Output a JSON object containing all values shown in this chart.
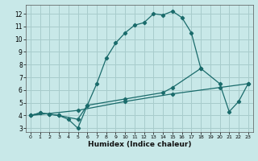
{
  "xlabel": "Humidex (Indice chaleur)",
  "bg_color": "#c8e8e8",
  "grid_color": "#a8cccc",
  "line_color": "#1a6b6b",
  "xlim": [
    -0.5,
    23.5
  ],
  "ylim": [
    2.7,
    12.7
  ],
  "xticks": [
    0,
    1,
    2,
    3,
    4,
    5,
    6,
    7,
    8,
    9,
    10,
    11,
    12,
    13,
    14,
    15,
    16,
    17,
    18,
    19,
    20,
    21,
    22,
    23
  ],
  "yticks": [
    3,
    4,
    5,
    6,
    7,
    8,
    9,
    10,
    11,
    12
  ],
  "curve1_x": [
    0,
    1,
    2,
    3,
    4,
    5,
    6,
    7,
    8,
    9,
    10,
    11,
    12,
    13,
    14,
    15,
    16,
    17,
    18
  ],
  "curve1_y": [
    4.0,
    4.2,
    4.1,
    4.0,
    3.7,
    3.0,
    4.8,
    6.5,
    8.5,
    9.7,
    10.5,
    11.1,
    11.3,
    12.0,
    11.9,
    12.2,
    11.7,
    10.5,
    7.7
  ],
  "curve2_x": [
    0,
    1,
    2,
    3,
    5,
    6,
    10,
    14,
    15,
    18,
    20,
    21,
    22,
    23
  ],
  "curve2_y": [
    4.0,
    4.2,
    4.1,
    4.0,
    3.7,
    4.8,
    5.3,
    5.8,
    6.2,
    7.7,
    6.5,
    4.3,
    5.1,
    6.5
  ],
  "curve3_x": [
    0,
    5,
    10,
    15,
    20,
    23
  ],
  "curve3_y": [
    4.0,
    4.4,
    5.1,
    5.7,
    6.2,
    6.5
  ]
}
